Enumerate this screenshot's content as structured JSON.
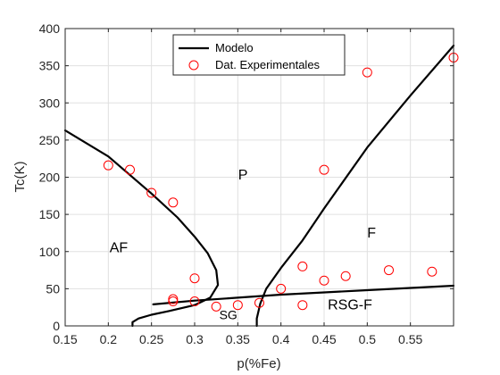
{
  "chart_data": {
    "type": "line",
    "xlabel": "p(%Fe)",
    "ylabel": "Tc(K)",
    "xlim": [
      0.15,
      0.6
    ],
    "ylim": [
      0,
      400
    ],
    "xticks": [
      "0.15",
      "0.2",
      "0.25",
      "0.3",
      "0.35",
      "0.4",
      "0.45",
      "0.5",
      "0.55"
    ],
    "yticks": [
      "0",
      "50",
      "100",
      "150",
      "200",
      "250",
      "300",
      "350",
      "400"
    ],
    "grid": true,
    "legend_position": "top-center",
    "colors": {
      "model": "#000000",
      "experimental": "#ff0000",
      "grid": "#e0e0e0",
      "axis": "#262626"
    },
    "legend": [
      {
        "label": "Modelo",
        "style": "line"
      },
      {
        "label": "Dat. Experimentales",
        "style": "circle"
      }
    ],
    "region_labels": [
      {
        "text": "P",
        "x": 0.356,
        "y": 197,
        "size": "normal"
      },
      {
        "text": "AF",
        "x": 0.212,
        "y": 99,
        "size": "normal"
      },
      {
        "text": "F",
        "x": 0.505,
        "y": 119,
        "size": "normal"
      },
      {
        "text": "RSG-F",
        "x": 0.48,
        "y": 22,
        "size": "normal"
      },
      {
        "text": "SG",
        "x": 0.339,
        "y": 9,
        "size": "small"
      }
    ],
    "series": [
      {
        "name": "Modelo",
        "kind": "line",
        "segments": [
          [
            [
              0.15,
              263
            ],
            [
              0.2,
              228
            ],
            [
              0.25,
              178
            ],
            [
              0.28,
              146
            ],
            [
              0.3,
              120
            ],
            [
              0.315,
              98
            ],
            [
              0.325,
              75
            ],
            [
              0.327,
              55
            ],
            [
              0.318,
              38
            ],
            [
              0.3,
              28
            ],
            [
              0.27,
              20
            ],
            [
              0.25,
              15
            ],
            [
              0.235,
              10
            ],
            [
              0.228,
              5
            ],
            [
              0.228,
              0
            ]
          ],
          [
            [
              0.252,
              29
            ],
            [
              0.3,
              34
            ],
            [
              0.35,
              38
            ],
            [
              0.4,
              42
            ],
            [
              0.45,
              45
            ],
            [
              0.5,
              48
            ],
            [
              0.55,
              51
            ],
            [
              0.6,
              54
            ]
          ],
          [
            [
              0.372,
              0
            ],
            [
              0.372,
              10
            ],
            [
              0.376,
              30
            ],
            [
              0.383,
              50
            ],
            [
              0.4,
              78
            ],
            [
              0.425,
              115
            ],
            [
              0.45,
              158
            ],
            [
              0.5,
              240
            ],
            [
              0.55,
              310
            ],
            [
              0.6,
              377
            ]
          ]
        ]
      },
      {
        "name": "Dat. Experimentales",
        "kind": "scatter",
        "points": [
          [
            0.2,
            216
          ],
          [
            0.225,
            210
          ],
          [
            0.25,
            179
          ],
          [
            0.275,
            166
          ],
          [
            0.3,
            64
          ],
          [
            0.275,
            36
          ],
          [
            0.275,
            33
          ],
          [
            0.3,
            33
          ],
          [
            0.325,
            26
          ],
          [
            0.35,
            28
          ],
          [
            0.375,
            31
          ],
          [
            0.4,
            50
          ],
          [
            0.425,
            80
          ],
          [
            0.425,
            28
          ],
          [
            0.45,
            61
          ],
          [
            0.475,
            67
          ],
          [
            0.45,
            210
          ],
          [
            0.5,
            341
          ],
          [
            0.525,
            75
          ],
          [
            0.575,
            73
          ],
          [
            0.6,
            361
          ]
        ]
      }
    ]
  }
}
